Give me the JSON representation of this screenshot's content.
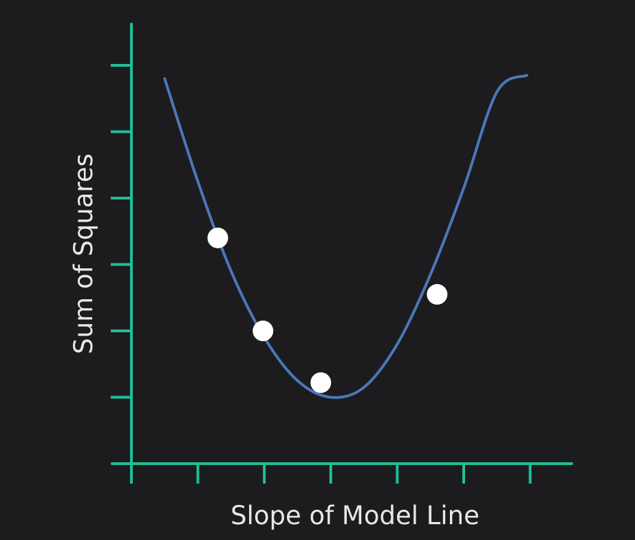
{
  "chart_data": {
    "type": "scatter",
    "title": "",
    "xlabel": "Slope of Model Line",
    "ylabel": "Sum of Squares",
    "xlim": [
      0,
      6.6
    ],
    "ylim": [
      0,
      6.3
    ],
    "x_ticks": [
      0,
      1,
      2,
      3,
      4,
      5,
      6
    ],
    "y_ticks": [
      1,
      2,
      3,
      4,
      5,
      6
    ],
    "grid": false,
    "series": [
      {
        "type": "line",
        "x": [
          0.5,
          1.0,
          1.5,
          2.0,
          2.5,
          3.0,
          3.5,
          4.0,
          4.5,
          5.0,
          5.5,
          5.95
        ],
        "y": [
          5.8,
          4.25,
          2.9,
          1.9,
          1.25,
          1.0,
          1.15,
          1.8,
          2.85,
          4.15,
          5.6,
          5.85
        ]
      },
      {
        "type": "scatter",
        "x": [
          1.3,
          1.98,
          2.85,
          4.6
        ],
        "y": [
          3.4,
          2.0,
          1.22,
          2.55
        ]
      }
    ]
  }
}
